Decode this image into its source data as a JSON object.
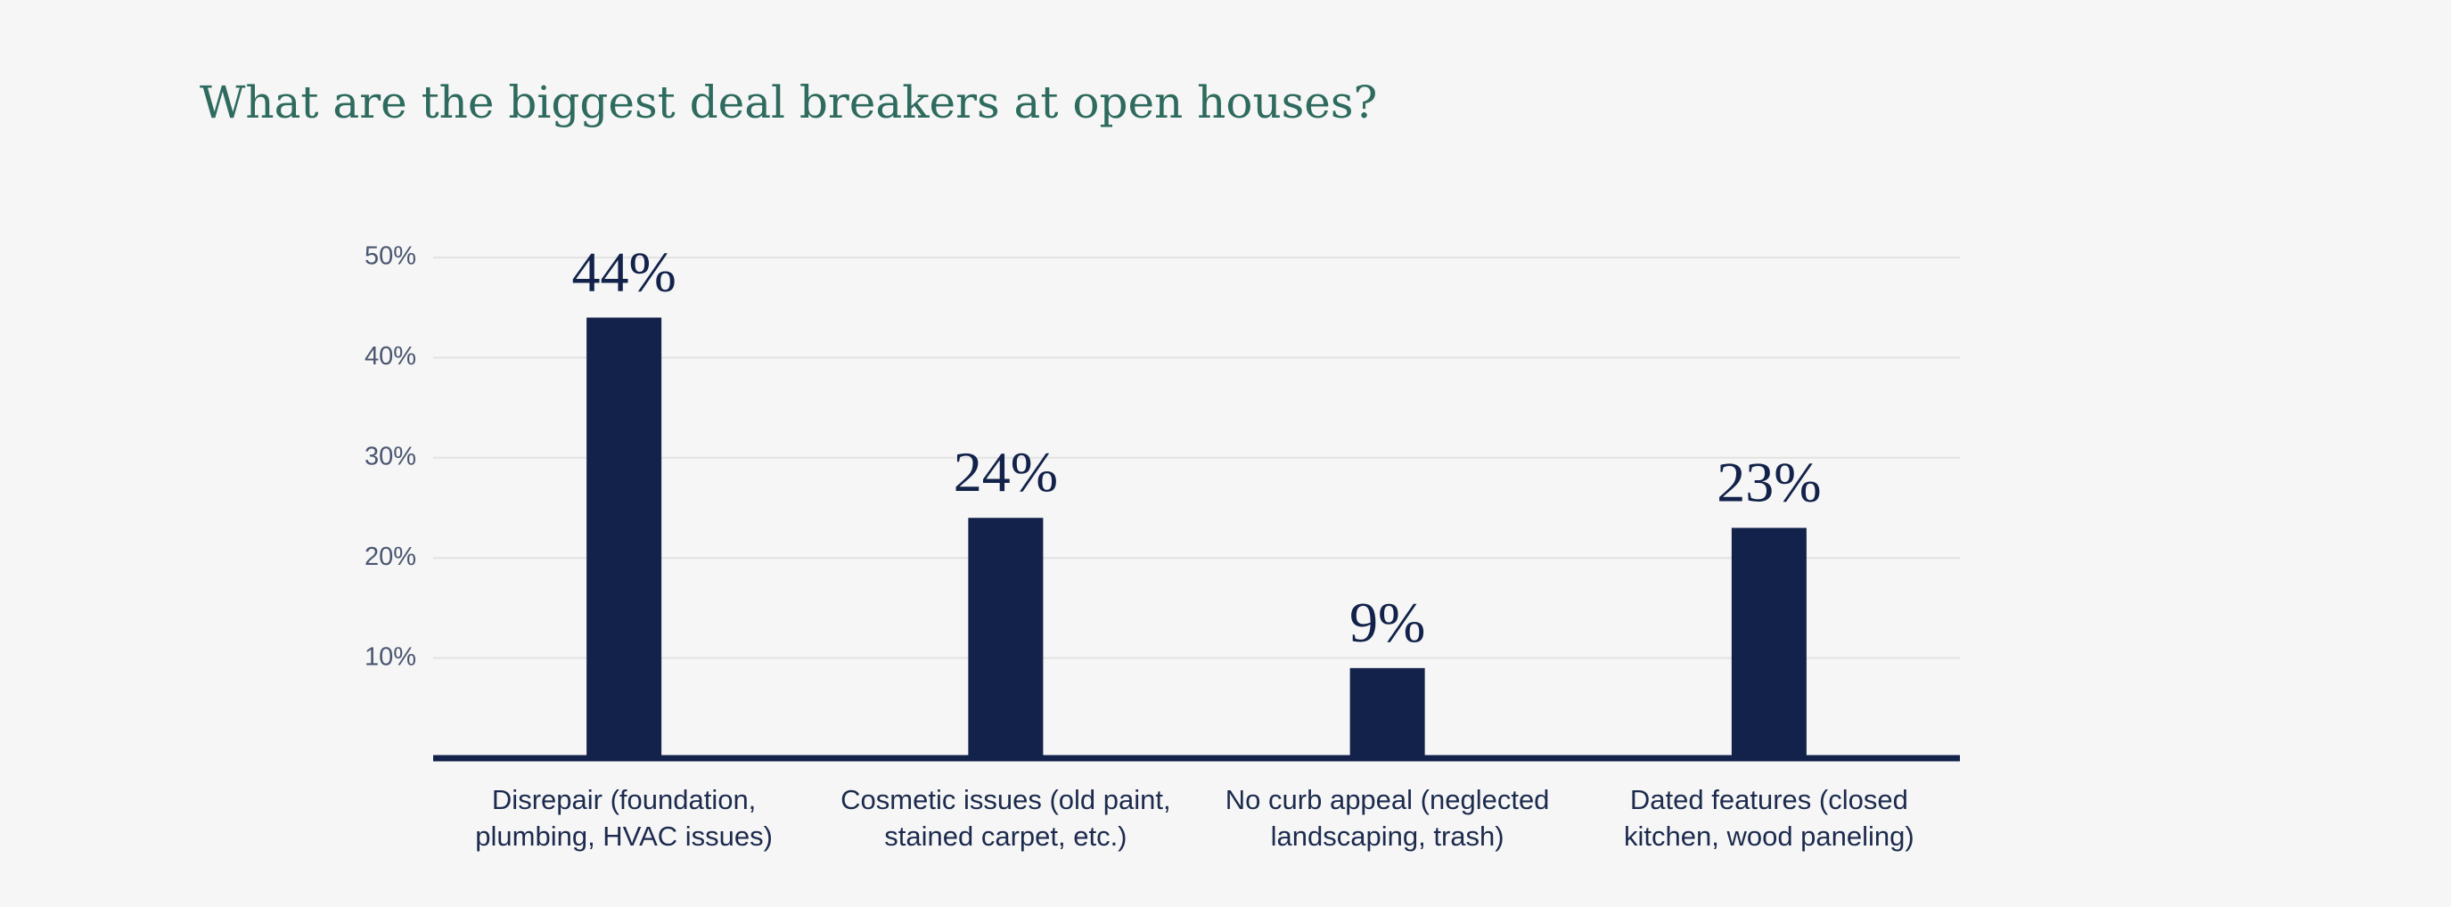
{
  "chart_data": {
    "type": "bar",
    "title": "What are the biggest deal breakers at open houses?",
    "categories": [
      "Disrepair (foundation, plumbing, HVAC issues)",
      "Cosmetic issues (old paint, stained carpet, etc.)",
      "No curb appeal (neglected landscaping, trash)",
      "Dated features (closed kitchen, wood paneling)"
    ],
    "values": [
      44,
      24,
      9,
      23
    ],
    "value_labels": [
      "44%",
      "24%",
      "9%",
      "23%"
    ],
    "color": "#13224a",
    "ylim": [
      0,
      50
    ],
    "yticks": [
      {
        "value": 10,
        "label": "10%"
      },
      {
        "value": 20,
        "label": "20%"
      },
      {
        "value": 30,
        "label": "30%"
      },
      {
        "value": 40,
        "label": "40%"
      },
      {
        "value": 50,
        "label": "50%"
      }
    ],
    "grid": true
  }
}
